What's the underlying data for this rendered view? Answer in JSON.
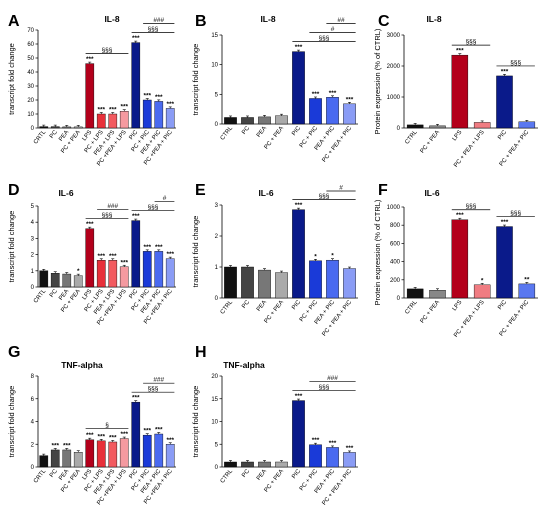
{
  "chart_data": [
    {
      "type": "bar",
      "panel": "A",
      "title": "IL-8",
      "ylabel": "transcript fold change",
      "ylim": [
        0,
        70
      ],
      "yticks": [
        0,
        10,
        20,
        30,
        40,
        50,
        60,
        70
      ],
      "categories": [
        "CRTL",
        "PC",
        "PEA",
        "PC + PEA",
        "LPS",
        "PC + LPS",
        "PEA + LPS",
        "PC +PEA + LPS",
        "PIC",
        "PC + PIC",
        "PEA + PIC",
        "PC +PEA + PIC"
      ],
      "values": [
        1,
        1,
        0.8,
        0.8,
        46,
        10,
        10,
        12,
        61,
        20,
        19,
        14
      ],
      "colors": [
        "#111111",
        "#444444",
        "#777777",
        "#aaaaaa",
        "#b3001b",
        "#e8303a",
        "#f25a5f",
        "#f59aa0",
        "#0a1a8a",
        "#1a3ad8",
        "#4a6af0",
        "#8a9cf5"
      ],
      "annotations": [
        "",
        "",
        "",
        "",
        "***",
        "***",
        "***",
        "***",
        "***",
        "***",
        "***",
        "***"
      ],
      "comparisons": [
        {
          "from": 4,
          "to": 7,
          "label": "§§§"
        },
        {
          "from": 8,
          "to": 11,
          "label": "§§§"
        },
        {
          "from": 9,
          "to": 11,
          "label": "###"
        }
      ]
    },
    {
      "type": "bar",
      "panel": "B",
      "title": "IL-8",
      "ylabel": "transcript fold change",
      "ylim": [
        0,
        15
      ],
      "yticks": [
        0,
        5,
        10,
        15
      ],
      "categories": [
        "CTRL",
        "PC",
        "PEA",
        "PC + PEA",
        "PIC",
        "PC + PIC",
        "PEA + PIC",
        "PC + PEA + PIC"
      ],
      "values": [
        1.1,
        1.1,
        1.2,
        1.4,
        12.2,
        4.3,
        4.5,
        3.4
      ],
      "colors": [
        "#111111",
        "#444444",
        "#777777",
        "#aaaaaa",
        "#0a1a8a",
        "#1a3ad8",
        "#4a6af0",
        "#8a9cf5"
      ],
      "annotations": [
        "",
        "",
        "",
        "",
        "***",
        "***",
        "***",
        "***"
      ],
      "comparisons": [
        {
          "from": 4,
          "to": 7,
          "label": "§§§"
        },
        {
          "from": 5,
          "to": 7,
          "label": "#"
        },
        {
          "from": 6,
          "to": 7,
          "label": "##"
        }
      ]
    },
    {
      "type": "bar",
      "panel": "C",
      "title": "IL-8",
      "ylabel": "Protein expression (% of CTRL)",
      "ylim": [
        0,
        3000
      ],
      "yticks": [
        0,
        1000,
        2000,
        3000
      ],
      "categories": [
        "CTRL",
        "PC + PEA",
        "LPS",
        "PC + PEA + LPS",
        "PIC",
        "PC + PEA + PIC"
      ],
      "values": [
        100,
        70,
        2350,
        180,
        1680,
        200
      ],
      "colors": [
        "#111111",
        "#888888",
        "#b3001b",
        "#f07c82",
        "#0a1a8a",
        "#5a78f0"
      ],
      "annotations": [
        "",
        "",
        "***",
        "",
        "***",
        ""
      ],
      "comparisons": [
        {
          "from": 2,
          "to": 3,
          "label": "§§§"
        },
        {
          "from": 4,
          "to": 5,
          "label": "§§§"
        }
      ]
    },
    {
      "type": "bar",
      "panel": "D",
      "title": "IL-6",
      "ylabel": "transcript fold change",
      "ylim": [
        0,
        5
      ],
      "yticks": [
        0,
        1,
        2,
        3,
        4,
        5
      ],
      "categories": [
        "CRTL",
        "PC",
        "PEA",
        "PC + PEA",
        "LPS",
        "PC + LPS",
        "PEA + LPS",
        "PC +PEA + LPS",
        "PIC",
        "PC + PIC",
        "PEA + PIC",
        "PC +PEA + PIC"
      ],
      "values": [
        1,
        0.85,
        0.8,
        0.7,
        3.6,
        1.65,
        1.65,
        1.25,
        4.1,
        2.2,
        2.2,
        1.75
      ],
      "colors": [
        "#111111",
        "#444444",
        "#777777",
        "#aaaaaa",
        "#b3001b",
        "#e8303a",
        "#f25a5f",
        "#f59aa0",
        "#0a1a8a",
        "#1a3ad8",
        "#4a6af0",
        "#8a9cf5"
      ],
      "annotations": [
        "",
        "",
        "",
        "*",
        "***",
        "***",
        "***",
        "***",
        "***",
        "***",
        "***",
        "***"
      ],
      "comparisons": [
        {
          "from": 4,
          "to": 7,
          "label": "§§§"
        },
        {
          "from": 5,
          "to": 7,
          "label": "###"
        },
        {
          "from": 8,
          "to": 11,
          "label": "§§§"
        },
        {
          "from": 10,
          "to": 11,
          "label": "#"
        }
      ]
    },
    {
      "type": "bar",
      "panel": "E",
      "title": "IL-6",
      "ylabel": "transcript fold change",
      "ylim": [
        0,
        3
      ],
      "yticks": [
        0,
        1,
        2,
        3
      ],
      "categories": [
        "CTRL",
        "PC",
        "PEA",
        "PC + PEA",
        "PIC",
        "PC + PIC",
        "PEA + PIC",
        "PC + PEA + PIC"
      ],
      "values": [
        1.0,
        1.0,
        0.9,
        0.82,
        2.85,
        1.2,
        1.22,
        0.95
      ],
      "colors": [
        "#111111",
        "#444444",
        "#777777",
        "#aaaaaa",
        "#0a1a8a",
        "#1a3ad8",
        "#4a6af0",
        "#8a9cf5"
      ],
      "annotations": [
        "",
        "",
        "",
        "",
        "***",
        "*",
        "*",
        ""
      ],
      "comparisons": [
        {
          "from": 4,
          "to": 7,
          "label": "§§§"
        },
        {
          "from": 6,
          "to": 7,
          "label": "#"
        }
      ]
    },
    {
      "type": "bar",
      "panel": "F",
      "title": "IL-6",
      "ylabel": "Protein expression (% of CTRL)",
      "ylim": [
        0,
        1000
      ],
      "yticks": [
        0,
        200,
        400,
        600,
        800,
        1000
      ],
      "categories": [
        "CTRL",
        "PC + PEA",
        "LPS",
        "PC + PEA + LPS",
        "PIC",
        "PC + PEA + PIC"
      ],
      "values": [
        100,
        85,
        860,
        145,
        785,
        155
      ],
      "colors": [
        "#111111",
        "#888888",
        "#b3001b",
        "#f07c82",
        "#0a1a8a",
        "#5a78f0"
      ],
      "annotations": [
        "",
        "",
        "***",
        "*",
        "***",
        "**"
      ],
      "comparisons": [
        {
          "from": 2,
          "to": 3,
          "label": "§§§"
        },
        {
          "from": 4,
          "to": 5,
          "label": "§§§"
        }
      ]
    },
    {
      "type": "bar",
      "panel": "G",
      "title": "TNF-alpha",
      "ylabel": "transcript fold change",
      "ylim": [
        0,
        8
      ],
      "yticks": [
        0,
        2,
        4,
        6,
        8
      ],
      "categories": [
        "CRTL",
        "PC",
        "PEA",
        "PC + PEA",
        "LPS",
        "PC + LPS",
        "PEA + LPS",
        "PC +PEA + LPS",
        "PIC",
        "PC + PIC",
        "PEA + PIC",
        "PC +PEA + PIC"
      ],
      "values": [
        1,
        1.5,
        1.5,
        1.3,
        2.4,
        2.3,
        2.2,
        2.5,
        5.7,
        2.8,
        2.9,
        2.0
      ],
      "colors": [
        "#111111",
        "#444444",
        "#777777",
        "#aaaaaa",
        "#b3001b",
        "#e8303a",
        "#f25a5f",
        "#f59aa0",
        "#0a1a8a",
        "#1a3ad8",
        "#4a6af0",
        "#8a9cf5"
      ],
      "annotations": [
        "",
        "***",
        "***",
        "",
        "***",
        "***",
        "***",
        "***",
        "***",
        "***",
        "***",
        "***"
      ],
      "comparisons": [
        {
          "from": 4,
          "to": 7,
          "label": "§"
        },
        {
          "from": 8,
          "to": 11,
          "label": "§§§"
        },
        {
          "from": 9,
          "to": 11,
          "label": "###"
        }
      ]
    },
    {
      "type": "bar",
      "panel": "H",
      "title": "TNF-alpha",
      "ylabel": "transcript fold change",
      "ylim": [
        0,
        20
      ],
      "yticks": [
        0,
        5,
        10,
        15,
        20
      ],
      "categories": [
        "CTRL",
        "PC",
        "PEA",
        "PC + PEA",
        "PIC",
        "PC + PIC",
        "PEA + PIC",
        "PC + PEA + PIC"
      ],
      "values": [
        1.1,
        1.1,
        1.1,
        1.1,
        14.6,
        4.9,
        4.3,
        3.2
      ],
      "colors": [
        "#111111",
        "#444444",
        "#777777",
        "#aaaaaa",
        "#0a1a8a",
        "#1a3ad8",
        "#4a6af0",
        "#8a9cf5"
      ],
      "annotations": [
        "",
        "",
        "",
        "",
        "***",
        "***",
        "***",
        "***"
      ],
      "comparisons": [
        {
          "from": 4,
          "to": 7,
          "label": "§§§"
        },
        {
          "from": 5,
          "to": 7,
          "label": "###"
        }
      ]
    }
  ]
}
